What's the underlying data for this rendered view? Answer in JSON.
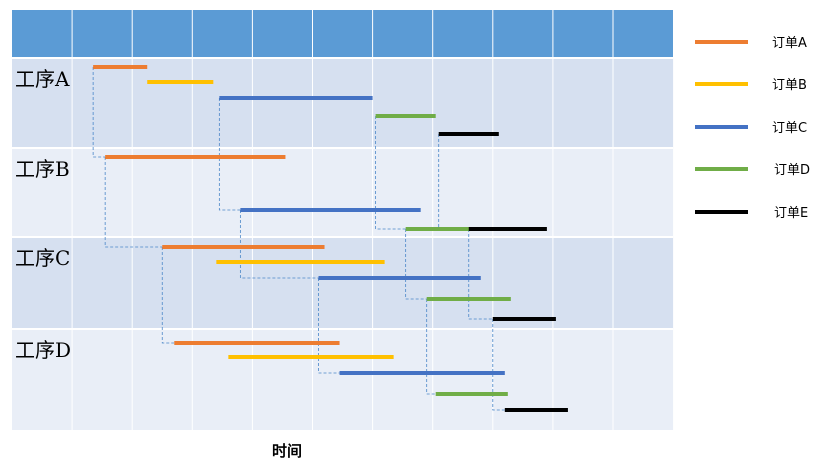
{
  "chart_data": {
    "type": "gantt",
    "xlabel": "时间",
    "grid": true,
    "legend_position": "right",
    "colors": {
      "header": "#5b9bd5",
      "row_dark": "#d6e0f0",
      "row_light": "#e9eef7",
      "grid_line": "#ffffff",
      "link_line": "#4a86c8"
    },
    "rows": [
      "工序A",
      "工序B",
      "工序C",
      "工序D"
    ],
    "series": [
      {
        "name": "订单A",
        "color": "#ed7d31",
        "tasks": [
          {
            "row": 0,
            "start": 1.35,
            "end": 2.25
          },
          {
            "row": 1,
            "start": 1.55,
            "end": 4.55
          },
          {
            "row": 2,
            "start": 2.5,
            "end": 5.2
          },
          {
            "row": 3,
            "start": 2.7,
            "end": 5.45
          }
        ]
      },
      {
        "name": "订单B",
        "color": "#ffc000",
        "tasks": [
          {
            "row": 0,
            "start": 2.25,
            "end": 3.35
          },
          {
            "row": 2,
            "start": 3.4,
            "end": 6.2
          },
          {
            "row": 3,
            "start": 3.6,
            "end": 6.35
          }
        ]
      },
      {
        "name": "订单C",
        "color": "#4472c4",
        "tasks": [
          {
            "row": 0,
            "start": 3.45,
            "end": 6.0
          },
          {
            "row": 1,
            "start": 3.8,
            "end": 6.8
          },
          {
            "row": 2,
            "start": 5.1,
            "end": 7.8
          },
          {
            "row": 3,
            "start": 5.45,
            "end": 8.2
          }
        ]
      },
      {
        "name": "订单D",
        "color": "#70ad47",
        "tasks": [
          {
            "row": 0,
            "start": 6.05,
            "end": 7.05
          },
          {
            "row": 1,
            "start": 6.55,
            "end": 8.15
          },
          {
            "row": 2,
            "start": 6.9,
            "end": 8.3
          },
          {
            "row": 3,
            "start": 7.05,
            "end": 8.25
          }
        ]
      },
      {
        "name": "订单E",
        "color": "#000000",
        "tasks": [
          {
            "row": 0,
            "start": 7.1,
            "end": 8.1
          },
          {
            "row": 1,
            "start": 7.6,
            "end": 8.9
          },
          {
            "row": 2,
            "start": 8.0,
            "end": 9.05
          },
          {
            "row": 3,
            "start": 8.2,
            "end": 9.25
          }
        ]
      }
    ],
    "links": [
      {
        "series": 0,
        "from": 0,
        "to": 1
      },
      {
        "series": 0,
        "from": 1,
        "to": 2
      },
      {
        "series": 0,
        "from": 2,
        "to": 3
      },
      {
        "series": 1,
        "from": 0,
        "to": 1
      },
      {
        "series": 1,
        "from": 1,
        "to": 2
      },
      {
        "series": 2,
        "from": 0,
        "to": 1
      },
      {
        "series": 2,
        "from": 1,
        "to": 2
      },
      {
        "series": 2,
        "from": 2,
        "to": 3
      },
      {
        "series": 3,
        "from": 0,
        "to": 1
      },
      {
        "series": 3,
        "from": 1,
        "to": 2
      },
      {
        "series": 3,
        "from": 2,
        "to": 3
      },
      {
        "series": 4,
        "from": 0,
        "to": 1
      },
      {
        "series": 4,
        "from": 1,
        "to": 2
      },
      {
        "series": 4,
        "from": 2,
        "to": 3
      }
    ]
  }
}
